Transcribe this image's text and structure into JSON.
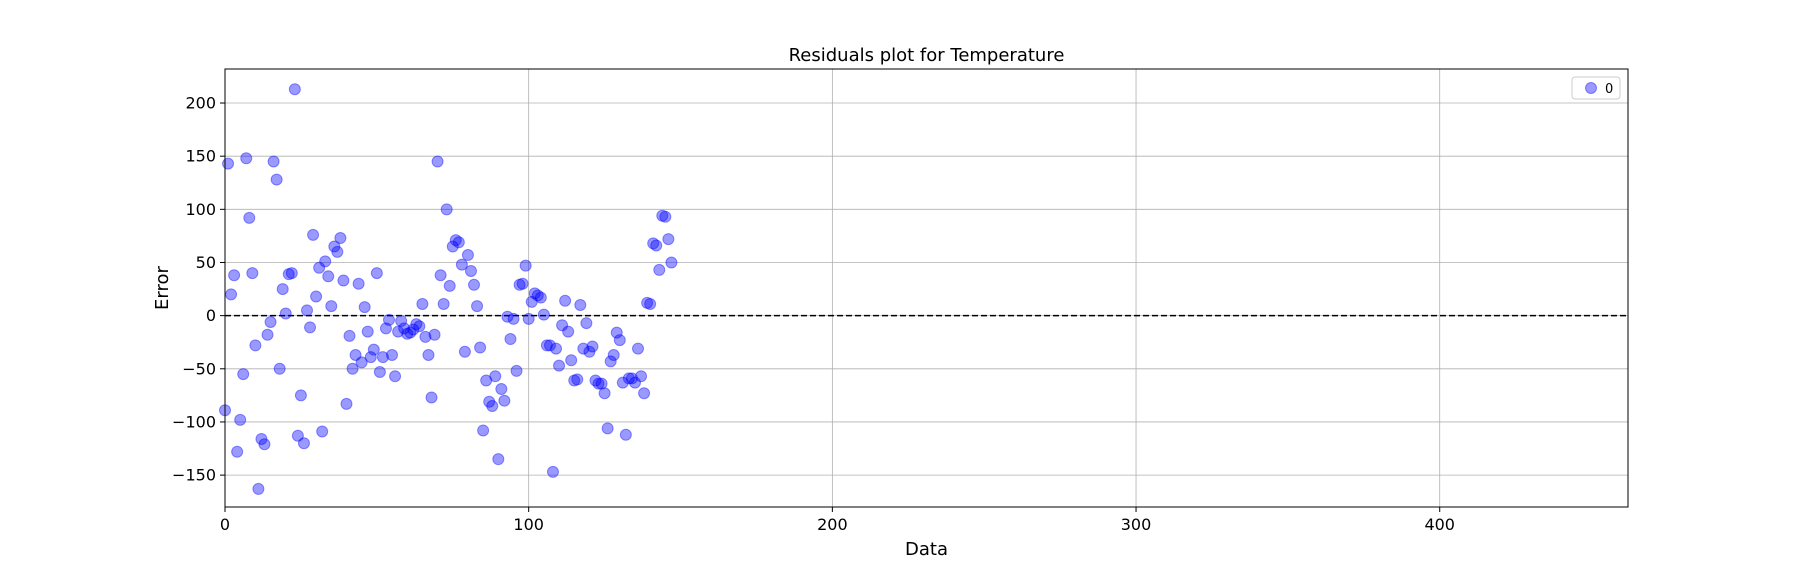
{
  "chart_data": {
    "type": "scatter",
    "title": "Residuals plot for Temperature",
    "xlabel": "Data",
    "ylabel": "Error",
    "xlim": [
      0,
      462
    ],
    "ylim": [
      -180,
      232
    ],
    "xticks": [
      0,
      100,
      200,
      300,
      400
    ],
    "yticks": [
      -150,
      -100,
      -50,
      0,
      50,
      100,
      150,
      200
    ],
    "grid": true,
    "legend": {
      "position": "top-right"
    },
    "reference_line": {
      "y": 0,
      "style": "dashed",
      "color": "#000000"
    },
    "marker_color": "#0000ff",
    "marker_alpha": 0.4,
    "series": [
      {
        "name": "0",
        "points": [
          [
            0,
            -89
          ],
          [
            1,
            143
          ],
          [
            2,
            20
          ],
          [
            3,
            38
          ],
          [
            4,
            -128
          ],
          [
            5,
            -98
          ],
          [
            6,
            -55
          ],
          [
            7,
            148
          ],
          [
            8,
            92
          ],
          [
            9,
            40
          ],
          [
            10,
            -28
          ],
          [
            11,
            -163
          ],
          [
            12,
            -116
          ],
          [
            13,
            -121
          ],
          [
            14,
            -18
          ],
          [
            15,
            -6
          ],
          [
            16,
            145
          ],
          [
            17,
            128
          ],
          [
            18,
            -50
          ],
          [
            19,
            25
          ],
          [
            20,
            2
          ],
          [
            21,
            39
          ],
          [
            22,
            40
          ],
          [
            23,
            213
          ],
          [
            24,
            -113
          ],
          [
            25,
            -75
          ],
          [
            26,
            -120
          ],
          [
            27,
            5
          ],
          [
            28,
            -11
          ],
          [
            29,
            76
          ],
          [
            30,
            18
          ],
          [
            31,
            45
          ],
          [
            32,
            -109
          ],
          [
            33,
            51
          ],
          [
            34,
            37
          ],
          [
            35,
            9
          ],
          [
            36,
            65
          ],
          [
            37,
            60
          ],
          [
            38,
            73
          ],
          [
            39,
            33
          ],
          [
            40,
            -83
          ],
          [
            41,
            -19
          ],
          [
            42,
            -50
          ],
          [
            43,
            -37
          ],
          [
            44,
            30
          ],
          [
            45,
            -44
          ],
          [
            46,
            8
          ],
          [
            47,
            -15
          ],
          [
            48,
            -39
          ],
          [
            49,
            -32
          ],
          [
            50,
            40
          ],
          [
            51,
            -53
          ],
          [
            52,
            -39
          ],
          [
            53,
            -12
          ],
          [
            54,
            -4
          ],
          [
            55,
            -37
          ],
          [
            56,
            -57
          ],
          [
            57,
            -15
          ],
          [
            58,
            -5
          ],
          [
            59,
            -12
          ],
          [
            60,
            -17
          ],
          [
            61,
            -16
          ],
          [
            62,
            -13
          ],
          [
            63,
            -8
          ],
          [
            64,
            -10
          ],
          [
            65,
            11
          ],
          [
            66,
            -20
          ],
          [
            67,
            -37
          ],
          [
            68,
            -77
          ],
          [
            69,
            -18
          ],
          [
            70,
            145
          ],
          [
            71,
            38
          ],
          [
            72,
            11
          ],
          [
            73,
            100
          ],
          [
            74,
            28
          ],
          [
            75,
            65
          ],
          [
            76,
            71
          ],
          [
            77,
            69
          ],
          [
            78,
            48
          ],
          [
            79,
            -34
          ],
          [
            80,
            57
          ],
          [
            81,
            42
          ],
          [
            82,
            29
          ],
          [
            83,
            9
          ],
          [
            84,
            -30
          ],
          [
            85,
            -108
          ],
          [
            86,
            -61
          ],
          [
            87,
            -81
          ],
          [
            88,
            -85
          ],
          [
            89,
            -57
          ],
          [
            90,
            -135
          ],
          [
            91,
            -69
          ],
          [
            92,
            -80
          ],
          [
            93,
            -1
          ],
          [
            94,
            -22
          ],
          [
            95,
            -3
          ],
          [
            96,
            -52
          ],
          [
            97,
            29
          ],
          [
            98,
            30
          ],
          [
            99,
            47
          ],
          [
            100,
            -3
          ],
          [
            101,
            13
          ],
          [
            102,
            21
          ],
          [
            103,
            19
          ],
          [
            104,
            17
          ],
          [
            105,
            1
          ],
          [
            106,
            -28
          ],
          [
            107,
            -28
          ],
          [
            108,
            -147
          ],
          [
            109,
            -31
          ],
          [
            110,
            -47
          ],
          [
            111,
            -9
          ],
          [
            112,
            14
          ],
          [
            113,
            -15
          ],
          [
            114,
            -42
          ],
          [
            115,
            -61
          ],
          [
            116,
            -60
          ],
          [
            117,
            10
          ],
          [
            118,
            -31
          ],
          [
            119,
            -7
          ],
          [
            120,
            -34
          ],
          [
            121,
            -29
          ],
          [
            122,
            -61
          ],
          [
            123,
            -64
          ],
          [
            124,
            -64
          ],
          [
            125,
            -73
          ],
          [
            126,
            -106
          ],
          [
            127,
            -43
          ],
          [
            128,
            -37
          ],
          [
            129,
            -16
          ],
          [
            130,
            -23
          ],
          [
            131,
            -63
          ],
          [
            132,
            -112
          ],
          [
            133,
            -59
          ],
          [
            134,
            -59
          ],
          [
            135,
            -63
          ],
          [
            136,
            -31
          ],
          [
            137,
            -57
          ],
          [
            138,
            -73
          ],
          [
            139,
            12
          ],
          [
            140,
            11
          ],
          [
            141,
            68
          ],
          [
            142,
            66
          ],
          [
            143,
            43
          ],
          [
            144,
            94
          ],
          [
            145,
            93
          ],
          [
            146,
            72
          ],
          [
            147,
            50
          ]
        ]
      }
    ]
  }
}
